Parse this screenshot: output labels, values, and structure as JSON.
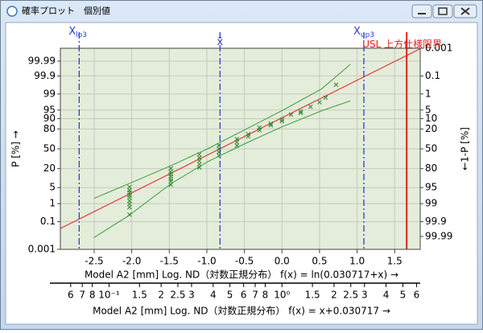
{
  "window": {
    "title": "確率プロット　個別値"
  },
  "chart_data": {
    "type": "probability-plot",
    "yscale": "normal-probability",
    "ylabel": "P [%] →",
    "y2label": "←1-P [%]",
    "xlabel": "Model A2 [mm]  Log. ND（対数正規分布）  f(x) = ln(0.030717+x) →",
    "x2label": "Model A2 [mm]  Log. ND（対数正規分布）  f(x) = x+0.030717 →",
    "xlim": [
      -2.95,
      1.84
    ],
    "xticks": [
      -2.5,
      {
        "value": -2,
        "label": "-2.0"
      },
      -1.5,
      {
        "value": -1,
        "label": "-1.0"
      },
      -0.5,
      {
        "value": 0,
        "label": "0.0"
      },
      0.5,
      {
        "value": 1,
        "label": "1.0"
      },
      1.5
    ],
    "ylim": [
      0.001,
      99.999
    ],
    "yticks": [
      0.001,
      0.1,
      1,
      5,
      20,
      50,
      80,
      90,
      95,
      99,
      99.9,
      99.99
    ],
    "y2lim": [
      99.999,
      0.001
    ],
    "y2ticks": [
      0.001,
      0.1,
      1,
      5,
      10,
      20,
      50,
      80,
      95,
      99,
      99.9,
      99.99
    ],
    "x2scale": "log",
    "x2lim": [
      0.0523,
      6.3
    ],
    "x2ticks": [
      {
        "value": 0.06,
        "label": "6"
      },
      {
        "value": 0.07,
        "label": "7"
      },
      {
        "value": 0.08,
        "label": "8"
      },
      {
        "value": 0.1,
        "label": "10⁻¹"
      },
      {
        "value": 0.15,
        "label": "1.5"
      },
      {
        "value": 0.2,
        "label": "2"
      },
      {
        "value": 0.25,
        "label": "2.5"
      },
      {
        "value": 0.3,
        "label": "3"
      },
      {
        "value": 0.4,
        "label": "4"
      },
      {
        "value": 0.5,
        "label": "5"
      },
      {
        "value": 0.6,
        "label": "6"
      },
      {
        "value": 0.7,
        "label": "7"
      },
      {
        "value": 0.8,
        "label": "8"
      },
      {
        "value": 1,
        "label": "10⁰"
      },
      1.5,
      2,
      2.5,
      3,
      4,
      5,
      6
    ],
    "grid": true,
    "reference_lines": [
      {
        "label": "X",
        "subscript": "lo3",
        "value": -2.7,
        "color": "#2a3fd0",
        "style": "dashdot"
      },
      {
        "label": "x̄",
        "value": -0.825,
        "color": "#2a3fd0",
        "style": "dashdot"
      },
      {
        "label": "X",
        "subscript": "up3",
        "value": 1.09,
        "color": "#2a3fd0",
        "style": "dashdot"
      },
      {
        "label": "USL 上方仕様限界",
        "value": 1.66,
        "color": "#e02020",
        "style": "solid"
      }
    ],
    "fit_line": {
      "color": "#e04040",
      "x": [
        -2.95,
        1.84
      ],
      "p": [
        0.036,
        99.9989
      ]
    },
    "bands": [
      {
        "color": "#3c9e3c",
        "x": [
          -2.5,
          -2.04,
          -1.48,
          -0.99,
          -0.48,
          0,
          0.53,
          0.91
        ],
        "p": [
          1.79,
          6.94,
          23.6,
          50,
          79.7,
          94.7,
          99.46,
          99.983
        ]
      },
      {
        "color": "#3c9e3c",
        "x": [
          -2.5,
          -2.04,
          -1.48,
          -0.99,
          -0.48,
          0,
          0.53,
          0.91
        ],
        "p": [
          0.0085,
          0.23,
          6.9,
          29.1,
          59.5,
          82.4,
          94.7,
          97.9
        ]
      }
    ],
    "series": [
      {
        "color": "#2a8a2a",
        "x": [
          -2.03,
          -2.03,
          -2.03,
          -2.03,
          -2.03,
          -2.03,
          -2.03,
          -2.03,
          -2.03,
          -1.48,
          -1.48,
          -1.48,
          -1.48,
          -1.48,
          -1.48,
          -1.48,
          -1.1,
          -1.1,
          -1.1,
          -1.1,
          -1.1,
          -0.84,
          -0.84,
          -0.84,
          -0.84,
          -0.6,
          -0.6,
          -0.6,
          -0.45,
          -0.45,
          -0.3,
          -0.3,
          -0.15,
          -0.15,
          0,
          0,
          0.12,
          0.25,
          0.25,
          0.38,
          0.5,
          0.58,
          0.72
        ],
        "p": [
          5.26,
          3.92,
          3.14,
          2.44,
          1.92,
          1.36,
          0.96,
          0.66,
          0.26,
          20.3,
          16.6,
          14.2,
          12.1,
          10.0,
          8.4,
          6.4,
          40.5,
          35.2,
          30.2,
          25.5,
          21.5,
          55.6,
          50,
          44.4,
          39,
          66,
          61,
          55.6,
          73.2,
          69.8,
          81.6,
          78.5,
          85.8,
          84.1,
          89.3,
          87.9,
          92.6,
          94.4,
          93.6,
          96.3,
          97.6,
          98.5,
          99.67
        ]
      }
    ]
  }
}
